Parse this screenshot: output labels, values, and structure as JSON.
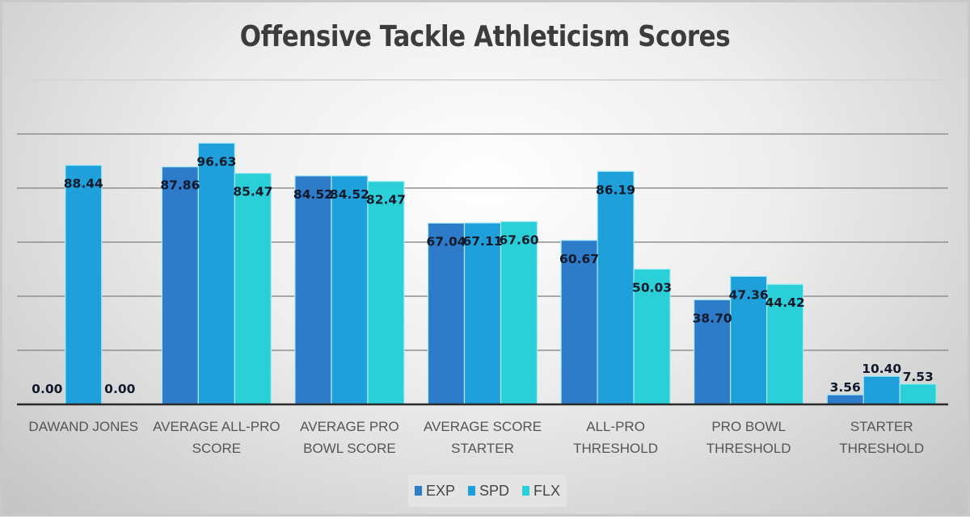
{
  "chart_data": {
    "type": "bar",
    "title": "Offensive Tackle Athleticism Scores",
    "xlabel": "",
    "ylabel": "",
    "ylim": [
      0,
      120
    ],
    "yticks": [
      0,
      20,
      40,
      60,
      80,
      100,
      120
    ],
    "ytick_labels_visible": false,
    "grid": true,
    "legend_position": "bottom",
    "categories": [
      [
        "DAWAND JONES"
      ],
      [
        "AVERAGE ALL-PRO",
        "SCORE"
      ],
      [
        "AVERAGE PRO",
        "BOWL SCORE"
      ],
      [
        "AVERAGE SCORE",
        "STARTER"
      ],
      [
        "ALL-PRO",
        "THRESHOLD"
      ],
      [
        "PRO BOWL",
        "THRESHOLD"
      ],
      [
        "STARTER",
        "THRESHOLD"
      ]
    ],
    "series": [
      {
        "name": "EXP",
        "color": "#2E7BC9",
        "values": [
          0.0,
          87.86,
          84.52,
          67.04,
          60.67,
          38.7,
          3.56
        ]
      },
      {
        "name": "SPD",
        "color": "#20A0DA",
        "values": [
          88.44,
          96.63,
          84.52,
          67.11,
          86.19,
          47.36,
          10.4
        ]
      },
      {
        "name": "FLX",
        "color": "#2BCFD8",
        "values": [
          0.0,
          85.47,
          82.47,
          67.6,
          50.03,
          44.42,
          7.53
        ]
      }
    ],
    "value_format": "0.00"
  }
}
